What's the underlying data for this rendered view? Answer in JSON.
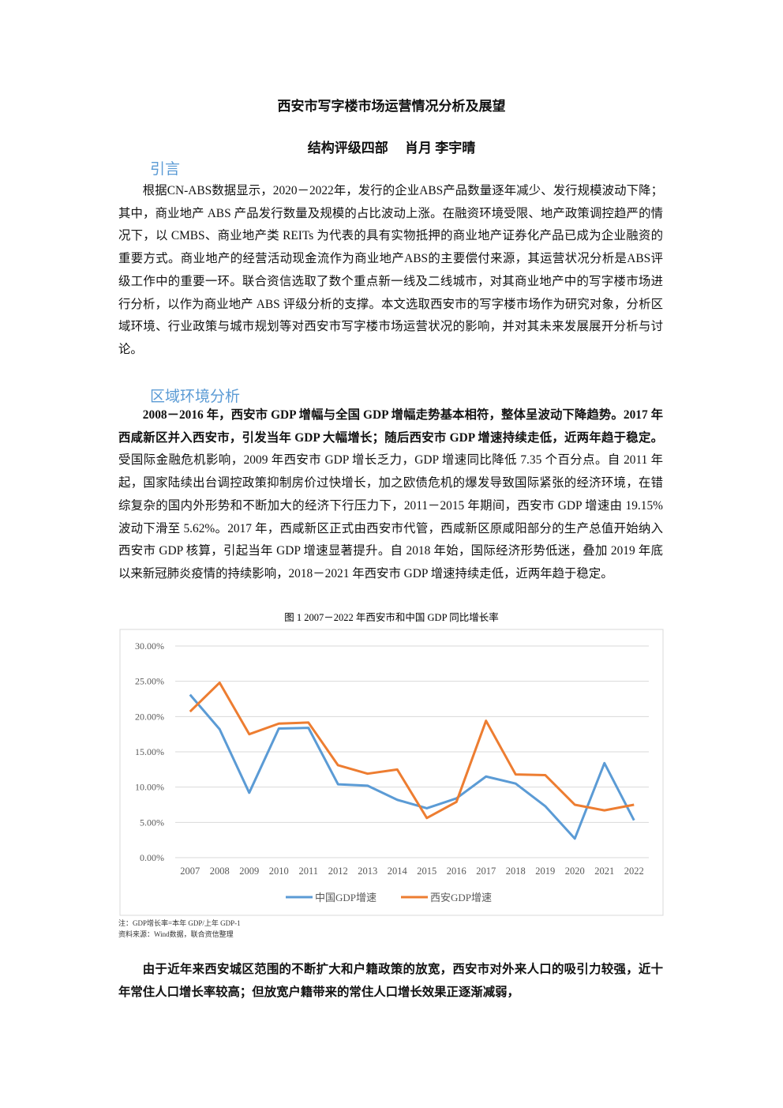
{
  "title": "西安市写字楼市场运营情况分析及展望",
  "authors": "结构评级四部　 肖月  李宇晴",
  "sections": [
    {
      "heading": "引言",
      "paragraphs": [
        [
          {
            "text": "根据CN-ABS数据显示，2020－2022年，发行的企业ABS产品数量逐年减少、发行规模波动下降；其中，商业地产 ABS 产品发行数量及规模的占比波动上涨。在融资环境受限、地产政策调控趋严的情况下，以 CMBS、商业地产类 REITs 为代表的具有实物抵押的商业地产证券化产品已成为企业融资的重要方式。商业地产的经营活动现金流作为商业地产ABS的主要偿付来源，其运营状况分析是ABS评级工作中的重要一环。联合资信选取了数个重点新一线及二线城市，对其商业地产中的写字楼市场进行分析，以作为商业地产 ABS 评级分析的支撑。本文选取西安市的写字楼市场作为研究对象，分析区域环境、行业政策与城市规划等对西安市写字楼市场运营状况的影响，并对其未来发展展开分析与讨论。",
            "bold": false
          }
        ]
      ]
    },
    {
      "heading": "区域环境分析",
      "paragraphs": [
        [
          {
            "text": "2008－2016 年，西安市 GDP 增幅与全国 GDP 增幅走势基本相符，整体呈波动下降趋势。2017 年西咸新区并入西安市，引发当年 GDP 大幅增长；随后西安市 GDP 增速持续走低，近两年趋于稳定。",
            "bold": true
          },
          {
            "text": "受国际金融危机影响，2009 年西安市 GDP 增长乏力，GDP 增速同比降低 7.35 个百分点。自 2011 年起，国家陆续出台调控政策抑制房价过快增长，加之欧债危机的爆发导致国际紧张的经济环境，在错综复杂的国内外形势和不断加大的经济下行压力下，2011－2015 年期间，西安市 GDP 增速由 19.15%波动下滑至 5.62%。2017 年，西咸新区正式由西安市代管，西咸新区原咸阳部分的生产总值开始纳入西安市 GDP 核算，引起当年 GDP 增速显著提升。自 2018 年始，国际经济形势低迷，叠加 2019 年底以来新冠肺炎疫情的持续影响，2018－2021 年西安市 GDP 增速持续走低，近两年趋于稳定。",
            "bold": false
          }
        ]
      ]
    }
  ],
  "chart_notes": [
    "注：GDP增长率=本年 GDP/上年 GDP-1",
    "资料来源：Wind数据，联合资信整理"
  ],
  "closing": "由于近年来西安城区范围的不断扩大和户籍政策的放宽，西安市对外来人口的吸引力较强，近十年常住人口增长率较高；但放宽户籍带来的常住人口增长效果正逐渐减弱，",
  "chart_data": {
    "type": "line",
    "title": "图 1  2007－2022 年西安市和中国 GDP 同比增长率",
    "categories": [
      "2007",
      "2008",
      "2009",
      "2010",
      "2011",
      "2012",
      "2013",
      "2014",
      "2015",
      "2016",
      "2017",
      "2018",
      "2019",
      "2020",
      "2021",
      "2022"
    ],
    "series": [
      {
        "name": "中国GDP增速",
        "color": "#5b9bd5",
        "values": [
          23.1,
          18.2,
          9.2,
          18.3,
          18.4,
          10.4,
          10.2,
          8.2,
          7.0,
          8.4,
          11.5,
          10.5,
          7.3,
          2.7,
          13.4,
          5.3
        ]
      },
      {
        "name": "西安GDP增速",
        "color": "#ed7d31",
        "values": [
          20.7,
          24.8,
          17.5,
          19.0,
          19.15,
          13.1,
          11.9,
          12.5,
          5.62,
          7.9,
          19.4,
          11.8,
          11.7,
          7.5,
          6.7,
          7.5
        ]
      }
    ],
    "ylim": [
      0,
      30
    ],
    "yticks": [
      {
        "value": 0,
        "label": "0.00%"
      },
      {
        "value": 5,
        "label": "5.00%"
      },
      {
        "value": 10,
        "label": "10.00%"
      },
      {
        "value": 15,
        "label": "15.00%"
      },
      {
        "value": 20,
        "label": "20.00%"
      },
      {
        "value": 25,
        "label": "25.00%"
      },
      {
        "value": 30,
        "label": "30.00%"
      }
    ],
    "grid": true,
    "legend": "bottom"
  }
}
